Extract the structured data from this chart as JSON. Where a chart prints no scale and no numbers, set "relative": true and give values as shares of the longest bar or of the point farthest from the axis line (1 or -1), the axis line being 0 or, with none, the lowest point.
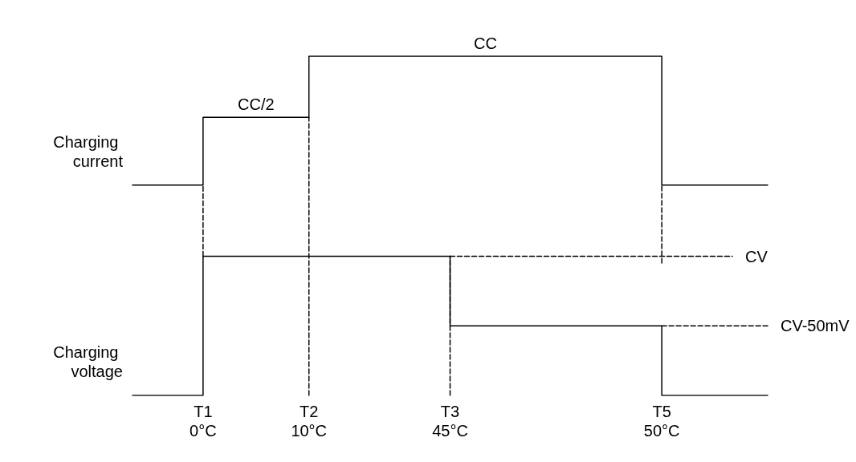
{
  "chart_data": {
    "type": "step",
    "relative": true,
    "grid": false,
    "marker": "none",
    "categories": [
      null,
      null,
      "T1\n0°C",
      null,
      null,
      "T2\n10°C",
      null,
      null,
      null,
      "T3\n45°C",
      null,
      null,
      null,
      null,
      null,
      "T5\n50°C",
      null,
      null,
      null
    ],
    "series": [
      {
        "name": "Charging current",
        "color": "#000000",
        "line_style": "solid",
        "values": [
          0.62,
          0.62,
          0.82,
          0.82,
          0.82,
          1,
          1,
          1,
          1,
          1,
          1,
          1,
          1,
          1,
          1,
          0.62,
          0.62,
          0.62,
          0.62
        ]
      },
      {
        "name": "Charging voltage",
        "color": "#000000",
        "line_style": "solid",
        "values": [
          0,
          0,
          0.41,
          0.41,
          0.41,
          0.41,
          0.41,
          0.41,
          0.41,
          0.205,
          0.205,
          0.205,
          0.205,
          0.205,
          0.205,
          0,
          0,
          0,
          0
        ]
      },
      {
        "name": "CV",
        "color": "#000000",
        "line_style": "dashed",
        "values": [
          null,
          null,
          null,
          null,
          null,
          null,
          null,
          null,
          null,
          0.41,
          0.41,
          0.41,
          0.41,
          0.41,
          0.41,
          0.41,
          0.41,
          0.41,
          null
        ]
      },
      {
        "name": "CV-50mV",
        "color": "#000000",
        "line_style": "dashed",
        "values": [
          null,
          null,
          null,
          null,
          null,
          null,
          null,
          null,
          null,
          null,
          null,
          null,
          null,
          null,
          null,
          0.205,
          0.205,
          0.205,
          0.205
        ]
      },
      {
        "type": "line",
        "color": "#000000",
        "line_style": "dashed",
        "x": [
          "T1\n0°C",
          "T1\n0°C"
        ],
        "values": [
          0.41,
          0.62
        ]
      },
      {
        "type": "line",
        "color": "#000000",
        "line_style": "dashed",
        "x": [
          "T2\n10°C",
          "T2\n10°C"
        ],
        "values": [
          0,
          0.82
        ]
      },
      {
        "type": "line",
        "color": "#000000",
        "line_style": "dashed",
        "x": [
          "T3\n45°C",
          "T3\n45°C"
        ],
        "values": [
          0,
          0.41
        ]
      },
      {
        "type": "line",
        "color": "#000000",
        "line_style": "dashed",
        "x": [
          "T5\n50°C",
          "T5\n50°C"
        ],
        "values": [
          0.39,
          0.62
        ]
      }
    ],
    "annotations": [
      {
        "text": "CC/2",
        "y": 0.82
      },
      {
        "text": "CC",
        "y": 1
      }
    ]
  }
}
